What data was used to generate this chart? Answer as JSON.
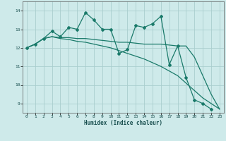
{
  "xlabel": "Humidex (Indice chaleur)",
  "xlim": [
    -0.5,
    23.5
  ],
  "ylim": [
    8.5,
    14.5
  ],
  "yticks": [
    9,
    10,
    11,
    12,
    13,
    14
  ],
  "xticks": [
    0,
    1,
    2,
    3,
    4,
    5,
    6,
    7,
    8,
    9,
    10,
    11,
    12,
    13,
    14,
    15,
    16,
    17,
    18,
    19,
    20,
    21,
    22,
    23
  ],
  "bg_color": "#ceeaea",
  "grid_color": "#aacece",
  "line_color": "#1a7a6a",
  "series": [
    [
      12.0,
      12.2,
      12.5,
      12.9,
      12.6,
      13.1,
      13.0,
      13.9,
      13.5,
      13.0,
      13.0,
      11.7,
      11.9,
      13.2,
      13.1,
      13.3,
      13.7,
      11.1,
      12.1,
      10.4,
      9.2,
      9.0,
      8.7
    ],
    [
      12.0,
      12.2,
      12.5,
      12.6,
      12.55,
      12.55,
      12.5,
      12.5,
      12.45,
      12.4,
      12.35,
      12.3,
      12.3,
      12.25,
      12.2,
      12.2,
      12.2,
      12.15,
      12.1,
      12.1,
      11.5,
      10.5,
      9.5,
      8.7
    ],
    [
      12.0,
      12.2,
      12.5,
      12.6,
      12.5,
      12.45,
      12.35,
      12.3,
      12.2,
      12.1,
      12.0,
      11.85,
      11.7,
      11.55,
      11.4,
      11.2,
      11.0,
      10.75,
      10.5,
      10.1,
      9.7,
      9.3,
      9.0,
      8.7
    ]
  ],
  "series_x": [
    [
      0,
      1,
      2,
      3,
      4,
      5,
      6,
      7,
      8,
      9,
      10,
      11,
      12,
      13,
      14,
      15,
      16,
      17,
      18,
      19,
      20,
      21,
      22
    ],
    [
      0,
      1,
      2,
      3,
      4,
      5,
      6,
      7,
      8,
      9,
      10,
      11,
      12,
      13,
      14,
      15,
      16,
      17,
      18,
      19,
      20,
      21,
      22,
      23
    ],
    [
      0,
      1,
      2,
      3,
      4,
      5,
      6,
      7,
      8,
      9,
      10,
      11,
      12,
      13,
      14,
      15,
      16,
      17,
      18,
      19,
      20,
      21,
      22,
      23
    ]
  ],
  "has_markers": [
    true,
    false,
    false
  ]
}
